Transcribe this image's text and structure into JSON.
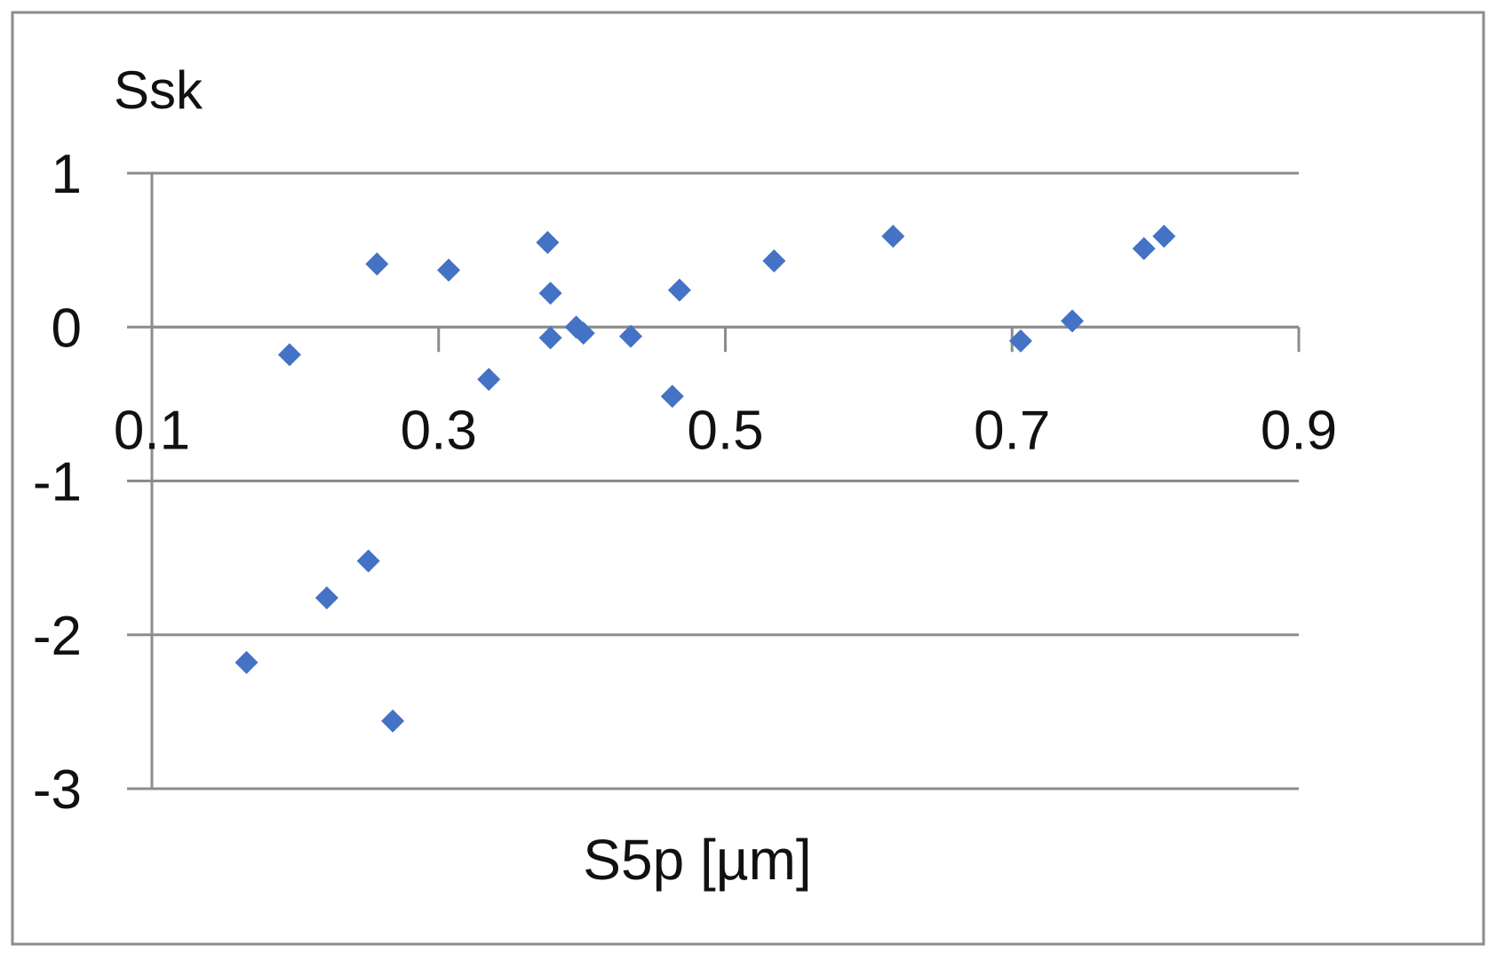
{
  "chart_data": {
    "type": "scatter",
    "title": "",
    "xlabel": "S5p [µm]",
    "ylabel": "Ssk",
    "xlim": [
      0.1,
      0.9
    ],
    "ylim": [
      -3,
      1
    ],
    "x_ticks": [
      0.1,
      0.3,
      0.5,
      0.7,
      0.9
    ],
    "x_tick_labels": [
      "0.1",
      "0.3",
      "0.5",
      "0.7",
      "0.9"
    ],
    "y_ticks": [
      1,
      0,
      -1,
      -2,
      -3
    ],
    "y_tick_labels": [
      "1",
      "0",
      "-1",
      "-2",
      "-3"
    ],
    "grid": "horizontal",
    "legend": "none",
    "marker": "diamond",
    "marker_color": "#4472C4",
    "axis_color": "#8C8C8C",
    "series": [
      {
        "points": [
          {
            "x": 0.166,
            "y": -2.18
          },
          {
            "x": 0.196,
            "y": -0.18
          },
          {
            "x": 0.222,
            "y": -1.76
          },
          {
            "x": 0.251,
            "y": -1.52
          },
          {
            "x": 0.257,
            "y": 0.41
          },
          {
            "x": 0.268,
            "y": -2.56
          },
          {
            "x": 0.307,
            "y": 0.37
          },
          {
            "x": 0.335,
            "y": -0.34
          },
          {
            "x": 0.376,
            "y": 0.55
          },
          {
            "x": 0.378,
            "y": 0.22
          },
          {
            "x": 0.378,
            "y": -0.07
          },
          {
            "x": 0.396,
            "y": 0.0
          },
          {
            "x": 0.401,
            "y": -0.04
          },
          {
            "x": 0.434,
            "y": -0.06
          },
          {
            "x": 0.463,
            "y": -0.45
          },
          {
            "x": 0.468,
            "y": 0.24
          },
          {
            "x": 0.534,
            "y": 0.43
          },
          {
            "x": 0.617,
            "y": 0.59
          },
          {
            "x": 0.706,
            "y": -0.09
          },
          {
            "x": 0.742,
            "y": 0.04
          },
          {
            "x": 0.792,
            "y": 0.51
          },
          {
            "x": 0.806,
            "y": 0.59
          }
        ]
      }
    ]
  }
}
